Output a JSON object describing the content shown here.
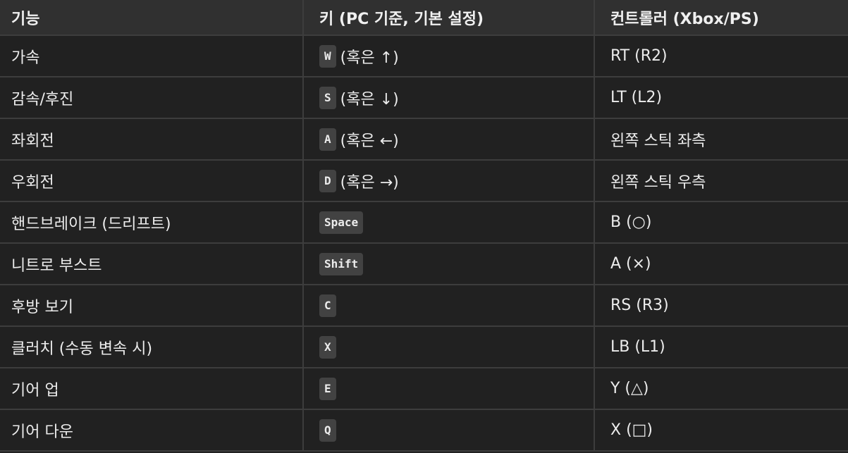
{
  "table": {
    "headers": [
      "기능",
      "키 (PC 기준, 기본 설정)",
      "컨트롤러 (Xbox/PS)"
    ],
    "rows": [
      {
        "function": "가속",
        "key": "W",
        "key_alt": "(혹은 ↑)",
        "controller": "RT (R2)"
      },
      {
        "function": "감속/후진",
        "key": "S",
        "key_alt": "(혹은 ↓)",
        "controller": "LT (L2)"
      },
      {
        "function": "좌회전",
        "key": "A",
        "key_alt": "(혹은 ←)",
        "controller": "왼쪽 스틱 좌측"
      },
      {
        "function": "우회전",
        "key": "D",
        "key_alt": "(혹은 →)",
        "controller": "왼쪽 스틱 우측"
      },
      {
        "function": "핸드브레이크 (드리프트)",
        "key": "Space",
        "key_alt": "",
        "controller": "B (○)"
      },
      {
        "function": "니트로 부스트",
        "key": "Shift",
        "key_alt": "",
        "controller": "A (×)"
      },
      {
        "function": "후방 보기",
        "key": "C",
        "key_alt": "",
        "controller": "RS (R3)"
      },
      {
        "function": "클러치 (수동 변속 시)",
        "key": "X",
        "key_alt": "",
        "controller": "LB (L1)"
      },
      {
        "function": "기어 업",
        "key": "E",
        "key_alt": "",
        "controller": "Y (△)"
      },
      {
        "function": "기어 다운",
        "key": "Q",
        "key_alt": "",
        "controller": "X (□)"
      }
    ]
  }
}
